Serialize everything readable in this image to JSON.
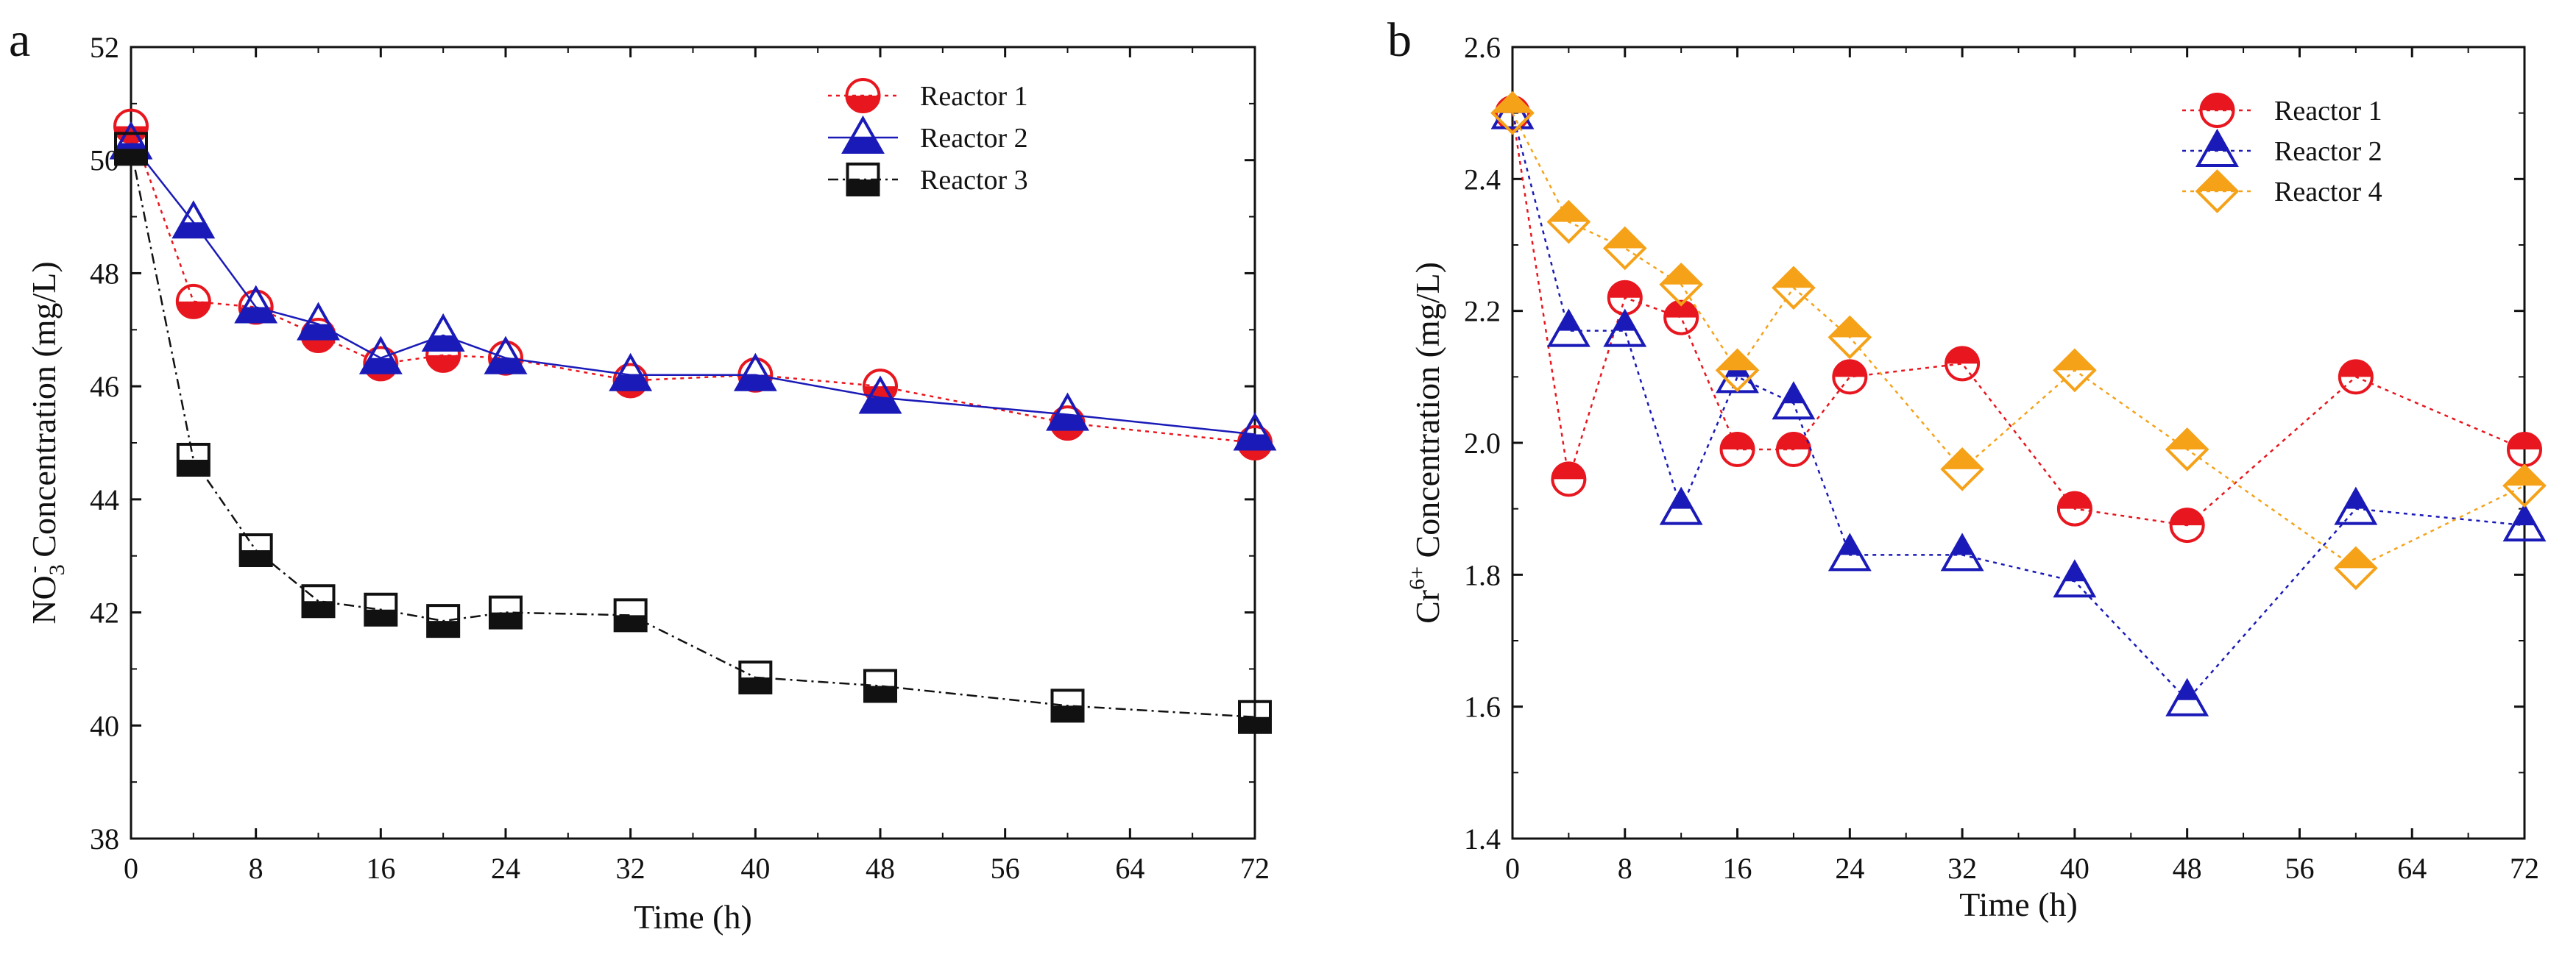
{
  "chart_data": [
    {
      "type": "line",
      "panel": "a",
      "xlabel": "Time (h)",
      "ylabel_main": "NO",
      "ylabel_sub": "3",
      "ylabel_sup": "-",
      "ylabel_rest": " Concentration (mg/L)",
      "xlim": [
        0,
        72
      ],
      "ylim": [
        38,
        52
      ],
      "xticks": [
        0,
        8,
        16,
        24,
        32,
        40,
        48,
        56,
        64,
        72
      ],
      "yticks": [
        38,
        40,
        42,
        44,
        46,
        48,
        50,
        52
      ],
      "grid": false,
      "legend_position": "top-right",
      "series": [
        {
          "name": "Reactor 1",
          "marker": "circle",
          "color": "#e8161e",
          "fill": "bottom",
          "line": "dotted",
          "x": [
            0,
            4,
            8,
            12,
            16,
            20,
            24,
            32,
            40,
            48,
            60,
            72
          ],
          "values": [
            50.6,
            47.5,
            47.4,
            46.9,
            46.4,
            46.55,
            46.5,
            46.1,
            46.2,
            46.0,
            45.35,
            45.0
          ]
        },
        {
          "name": "Reactor 2",
          "marker": "triangle",
          "color": "#1a1ab8",
          "fill": "bottom",
          "line": "solid",
          "x": [
            0,
            4,
            8,
            12,
            16,
            20,
            24,
            32,
            40,
            48,
            60,
            72
          ],
          "values": [
            50.3,
            48.9,
            47.4,
            47.1,
            46.5,
            46.9,
            46.5,
            46.2,
            46.2,
            45.8,
            45.5,
            45.15
          ]
        },
        {
          "name": "Reactor 3",
          "marker": "square",
          "color": "#111111",
          "fill": "bottom",
          "line": "dashdot",
          "x": [
            0,
            4,
            8,
            12,
            16,
            20,
            24,
            32,
            40,
            48,
            60,
            72
          ],
          "values": [
            50.2,
            44.7,
            43.1,
            42.2,
            42.05,
            41.85,
            42.0,
            41.95,
            40.85,
            40.7,
            40.35,
            40.15
          ]
        }
      ]
    },
    {
      "type": "line",
      "panel": "b",
      "xlabel": "Time (h)",
      "ylabel_main": "Cr",
      "ylabel_sup": "6+",
      "ylabel_rest": " Concentration (mg/L)",
      "xlim": [
        0,
        72
      ],
      "ylim": [
        1.4,
        2.6
      ],
      "xticks": [
        0,
        8,
        16,
        24,
        32,
        40,
        48,
        56,
        64,
        72
      ],
      "yticks": [
        1.4,
        1.6,
        1.8,
        2.0,
        2.2,
        2.4,
        2.6
      ],
      "grid": false,
      "legend_position": "top-right",
      "series": [
        {
          "name": "Reactor 1",
          "marker": "circle",
          "color": "#e8161e",
          "fill": "top",
          "line": "dotted",
          "x": [
            0,
            4,
            8,
            12,
            16,
            20,
            24,
            32,
            40,
            48,
            60,
            72
          ],
          "values": [
            2.5,
            1.945,
            2.22,
            2.19,
            1.99,
            1.99,
            2.1,
            2.12,
            1.9,
            1.875,
            2.1,
            1.99
          ]
        },
        {
          "name": "Reactor 2",
          "marker": "triangle",
          "color": "#1a1ab8",
          "fill": "top",
          "line": "dotted",
          "x": [
            0,
            4,
            8,
            12,
            16,
            20,
            24,
            32,
            40,
            48,
            60,
            72
          ],
          "values": [
            2.5,
            2.17,
            2.17,
            1.9,
            2.1,
            2.06,
            1.83,
            1.83,
            1.79,
            1.61,
            1.9,
            1.875
          ]
        },
        {
          "name": "Reactor 4",
          "marker": "diamond",
          "color": "#f5a219",
          "fill": "top",
          "line": "dotted",
          "x": [
            0,
            4,
            8,
            12,
            16,
            20,
            24,
            32,
            40,
            48,
            60,
            72
          ],
          "values": [
            2.5,
            2.335,
            2.295,
            2.24,
            2.11,
            2.235,
            2.16,
            1.96,
            2.11,
            1.99,
            1.81,
            1.935
          ]
        }
      ]
    }
  ]
}
